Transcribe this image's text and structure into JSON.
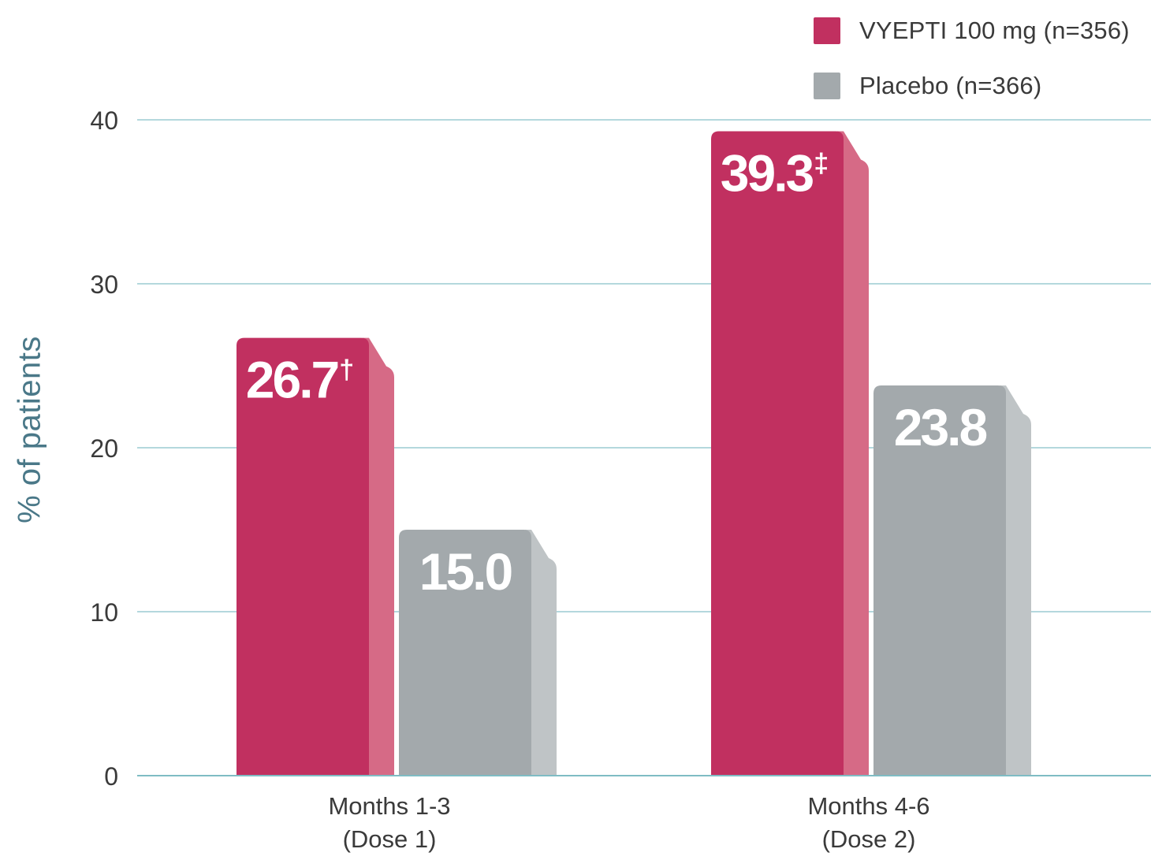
{
  "chart_data": {
    "type": "bar",
    "categories": [
      [
        "Months 1-3",
        "(Dose 1)"
      ],
      [
        "Months 4-6",
        "(Dose 2)"
      ]
    ],
    "series": [
      {
        "name": "VYEPTI 100 mg (n=356)",
        "values": [
          26.7,
          39.3
        ],
        "labels": [
          "26.7",
          "39.3"
        ],
        "marks": [
          "†",
          "‡"
        ],
        "color": "#c13060",
        "side_color": "#d66a86"
      },
      {
        "name": "Placebo (n=366)",
        "values": [
          15.0,
          23.8
        ],
        "labels": [
          "15.0",
          "23.8"
        ],
        "marks": [
          "",
          ""
        ],
        "color": "#a3a9ac",
        "side_color": "#bfc4c6"
      }
    ],
    "ylabel": "% of patients",
    "ylim": [
      0,
      40
    ],
    "yticks": [
      "0",
      "10",
      "20",
      "30",
      "40"
    ],
    "grid": true,
    "legend": "top-right",
    "grid_color": "#9ccbd2"
  }
}
